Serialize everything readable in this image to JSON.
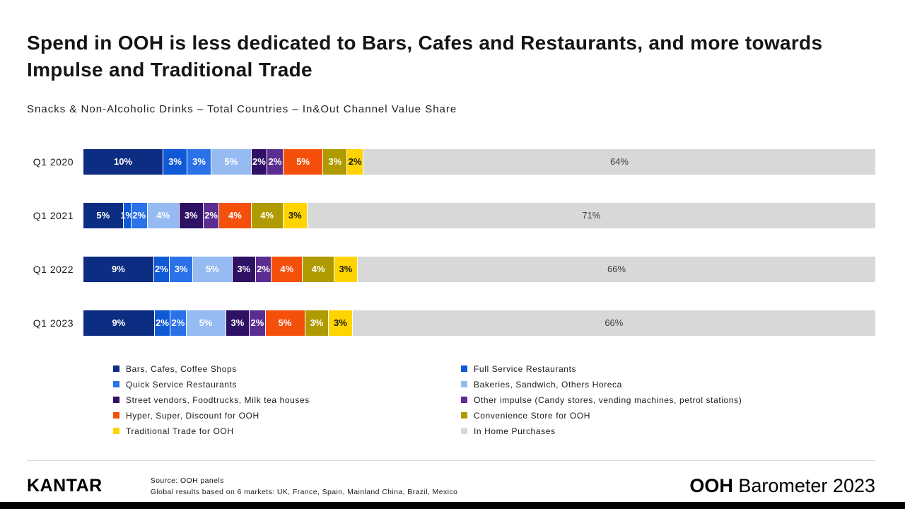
{
  "title": "Spend in OOH is less dedicated to Bars, Cafes and Restaurants, and more towards Impulse and Traditional Trade",
  "subtitle": "Snacks & Non-Alcoholic Drinks – Total Countries – In&Out Channel Value Share",
  "footer": {
    "logo": "KANTAR",
    "source_line1": "Source: OOH panels",
    "source_line2": "Global results based on 6 markets: UK, France, Spain, Mainland China, Brazil, Mexico",
    "report_bold": "OOH",
    "report_rest": " Barometer 2023"
  },
  "chart_data": {
    "type": "bar",
    "stacked": true,
    "orientation": "horizontal",
    "unit": "%",
    "legend_position": "bottom",
    "categories": [
      "Q1 2020",
      "Q1 2021",
      "Q1 2022",
      "Q1 2023"
    ],
    "series": [
      {
        "name": "Bars, Cafes, Coffee Shops",
        "color": "#0c2d82",
        "label_color": "#ffffff",
        "values": [
          10,
          5,
          9,
          9
        ]
      },
      {
        "name": "Full Service Restaurants",
        "color": "#1059d6",
        "label_color": "#ffffff",
        "values": [
          3,
          1,
          2,
          2
        ]
      },
      {
        "name": "Quick Service Restaurants",
        "color": "#2b72e8",
        "label_color": "#ffffff",
        "values": [
          3,
          2,
          3,
          2
        ]
      },
      {
        "name": "Bakeries, Sandwich, Others Horeca",
        "color": "#96bbf2",
        "label_color": "#ffffff",
        "values": [
          5,
          4,
          5,
          5
        ]
      },
      {
        "name": "Street vendors, Foodtrucks, Milk tea houses",
        "color": "#2e1065",
        "label_color": "#ffffff",
        "values": [
          2,
          3,
          3,
          3
        ]
      },
      {
        "name": "Other impulse (Candy stores, vending machines, petrol stations)",
        "color": "#5c2d91",
        "label_color": "#ffffff",
        "values": [
          2,
          2,
          2,
          2
        ]
      },
      {
        "name": "Hyper, Super, Discount for OOH",
        "color": "#f4500c",
        "label_color": "#ffffff",
        "values": [
          5,
          4,
          4,
          5
        ]
      },
      {
        "name": "Convenience Store for OOH",
        "color": "#af9b00",
        "label_color": "#ffffff",
        "values": [
          3,
          4,
          4,
          3
        ]
      },
      {
        "name": "Traditional Trade for OOH",
        "color": "#ffd400",
        "label_color": "#1a1a1a",
        "values": [
          2,
          3,
          3,
          3
        ]
      },
      {
        "name": "In Home Purchases",
        "color": "#d8d8d8",
        "label_color": "#3d3d3d",
        "values": [
          64,
          71,
          66,
          66
        ]
      }
    ],
    "legend_columns": [
      [
        0,
        2,
        4,
        6,
        8
      ],
      [
        1,
        3,
        5,
        7,
        9
      ]
    ]
  }
}
